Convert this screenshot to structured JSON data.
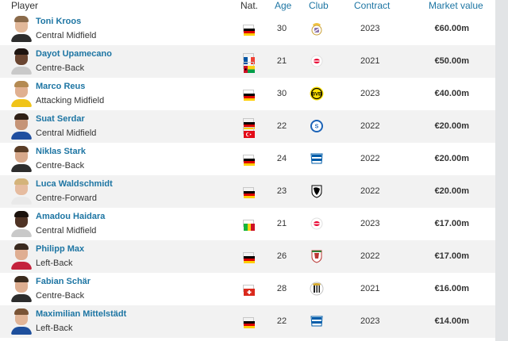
{
  "header": {
    "player": "Player",
    "nat": "Nat.",
    "age": "Age",
    "club": "Club",
    "contract": "Contract",
    "market_value": "Market value"
  },
  "rows": [
    {
      "name": "Toni Kroos",
      "position": "Central Midfield",
      "nationalities": [
        "germany"
      ],
      "age": "30",
      "club_icon": "real-madrid-crest-icon",
      "contract": "2023",
      "value": "€60.00m",
      "skin": "#e2b899",
      "hair": "#8a6a4a",
      "shirt": "#2d2d2d"
    },
    {
      "name": "Dayot Upamecano",
      "position": "Centre-Back",
      "nationalities": [
        "france",
        "guinea-bissau"
      ],
      "age": "21",
      "club_icon": "rb-leipzig-crest-icon",
      "contract": "2021",
      "value": "€50.00m",
      "skin": "#6a4531",
      "hair": "#1e1410",
      "shirt": "#c9c9c9"
    },
    {
      "name": "Marco Reus",
      "position": "Attacking Midfield",
      "nationalities": [
        "germany"
      ],
      "age": "30",
      "club_icon": "borussia-dortmund-crest-icon",
      "contract": "2023",
      "value": "€40.00m",
      "skin": "#e0b091",
      "hair": "#b48a52",
      "shirt": "#f0c419"
    },
    {
      "name": "Suat Serdar",
      "position": "Central Midfield",
      "nationalities": [
        "germany",
        "turkey"
      ],
      "age": "22",
      "club_icon": "schalke-crest-icon",
      "contract": "2022",
      "value": "€20.00m",
      "skin": "#c59477",
      "hair": "#2f2016",
      "shirt": "#1f4fa0"
    },
    {
      "name": "Niklas Stark",
      "position": "Centre-Back",
      "nationalities": [
        "germany"
      ],
      "age": "24",
      "club_icon": "hertha-bsc-crest-icon",
      "contract": "2022",
      "value": "€20.00m",
      "skin": "#d8a98b",
      "hair": "#5a3d26",
      "shirt": "#2d2d2d"
    },
    {
      "name": "Luca Waldschmidt",
      "position": "Centre-Forward",
      "nationalities": [
        "germany"
      ],
      "age": "23",
      "club_icon": "sc-freiburg-crest-icon",
      "contract": "2022",
      "value": "€20.00m",
      "skin": "#e6bca0",
      "hair": "#d4b37a",
      "shirt": "#e9e9e9"
    },
    {
      "name": "Amadou Haidara",
      "position": "Central Midfield",
      "nationalities": [
        "mali"
      ],
      "age": "21",
      "club_icon": "rb-leipzig-crest-icon",
      "contract": "2023",
      "value": "€17.00m",
      "skin": "#4f3324",
      "hair": "#1b120d",
      "shirt": "#c9c9c9"
    },
    {
      "name": "Philipp Max",
      "position": "Left-Back",
      "nationalities": [
        "germany"
      ],
      "age": "26",
      "club_icon": "fc-augsburg-crest-icon",
      "contract": "2022",
      "value": "€17.00m",
      "skin": "#dfae92",
      "hair": "#3a2a1f",
      "shirt": "#c4223d"
    },
    {
      "name": "Fabian Schär",
      "position": "Centre-Back",
      "nationalities": [
        "switzerland"
      ],
      "age": "28",
      "club_icon": "newcastle-united-crest-icon",
      "contract": "2021",
      "value": "€16.00m",
      "skin": "#deae90",
      "hair": "#3b2b1e",
      "shirt": "#2d2d2d"
    },
    {
      "name": "Maximilian Mittelstädt",
      "position": "Left-Back",
      "nationalities": [
        "germany"
      ],
      "age": "22",
      "club_icon": "hertha-bsc-crest-icon",
      "contract": "2023",
      "value": "€14.00m",
      "skin": "#e2b597",
      "hair": "#7a5436",
      "shirt": "#1e4f9c"
    }
  ],
  "colors": {
    "link": "#1d75a3",
    "row_alt": "#f2f2f2"
  }
}
